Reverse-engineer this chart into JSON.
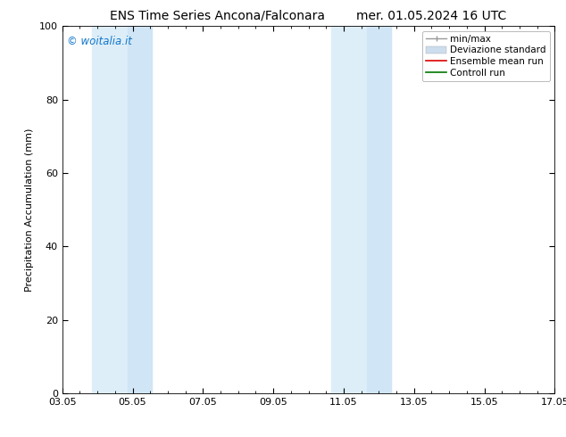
{
  "title_left": "ENS Time Series Ancona/Falconara",
  "title_right": "mer. 01.05.2024 16 UTC",
  "ylabel": "Precipitation Accumulation (mm)",
  "ylim": [
    0,
    100
  ],
  "yticks": [
    0,
    20,
    40,
    60,
    80,
    100
  ],
  "xtick_labels": [
    "03.05",
    "05.05",
    "07.05",
    "09.05",
    "11.05",
    "13.05",
    "15.05",
    "17.05"
  ],
  "xtick_positions": [
    0,
    2,
    4,
    6,
    8,
    10,
    12,
    14
  ],
  "shaded_regions": [
    {
      "x_start": 0.85,
      "x_end": 1.85,
      "color": "#ddeef8",
      "zorder": 0
    },
    {
      "x_start": 1.85,
      "x_end": 2.55,
      "color": "#d0e5f5",
      "zorder": 0
    },
    {
      "x_start": 7.65,
      "x_end": 8.65,
      "color": "#ddeef8",
      "zorder": 0
    },
    {
      "x_start": 8.65,
      "x_end": 9.35,
      "color": "#d0e5f5",
      "zorder": 0
    }
  ],
  "watermark_text": "© woitalia.it",
  "watermark_color": "#1177cc",
  "background_color": "#ffffff",
  "legend_entries": [
    {
      "label": "min/max",
      "color": "#999999"
    },
    {
      "label": "Deviazione standard",
      "color": "#ccddee"
    },
    {
      "label": "Ensemble mean run",
      "color": "#dd0000"
    },
    {
      "label": "Controll run",
      "color": "#007700"
    }
  ],
  "title_fontsize": 10,
  "axis_fontsize": 8,
  "tick_fontsize": 8,
  "legend_fontsize": 7.5
}
